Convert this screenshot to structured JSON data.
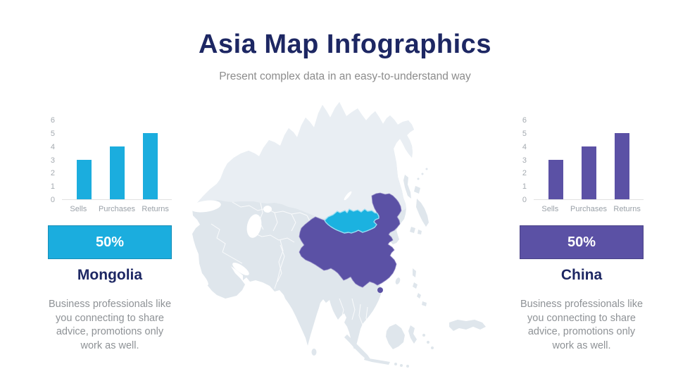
{
  "header": {
    "title": "Asia Map Infographics",
    "subtitle": "Present complex data in an easy-to-understand way"
  },
  "colors": {
    "navy": "#1d2763",
    "cyan": "#1badde",
    "purple": "#5b51a5",
    "land": "#dfe6ec",
    "land_north": "#e9eef3",
    "text_gray": "#8e9296",
    "axis_gray": "#a4aab0"
  },
  "chart_data": [
    {
      "type": "bar",
      "region": "Mongolia",
      "categories": [
        "Sells",
        "Purchases",
        "Returns"
      ],
      "values": [
        3,
        4,
        5
      ],
      "ylim": [
        0,
        6
      ],
      "yticks": [
        0,
        1,
        2,
        3,
        4,
        5,
        6
      ],
      "bar_color": "#1badde",
      "grid": false,
      "legend": "none"
    },
    {
      "type": "bar",
      "region": "China",
      "categories": [
        "Sells",
        "Purchases",
        "Returns"
      ],
      "values": [
        3,
        4,
        5
      ],
      "ylim": [
        0,
        6
      ],
      "yticks": [
        0,
        1,
        2,
        3,
        4,
        5,
        6
      ],
      "bar_color": "#5b51a5",
      "grid": false,
      "legend": "none"
    }
  ],
  "panels": [
    {
      "badge": "50%",
      "region": "Mongolia",
      "description": "Business professionals like\nyou connecting to share\nadvice, promotions only\nwork as well.",
      "accent": "#1badde"
    },
    {
      "badge": "50%",
      "region": "China",
      "description": "Business professionals like\nyou connecting to share\nadvice, promotions only\nwork as well.",
      "accent": "#5b51a5"
    }
  ],
  "map": {
    "highlights": [
      {
        "name": "Mongolia",
        "color": "#1bb2e0"
      },
      {
        "name": "China",
        "color": "#5b51a5"
      }
    ]
  }
}
